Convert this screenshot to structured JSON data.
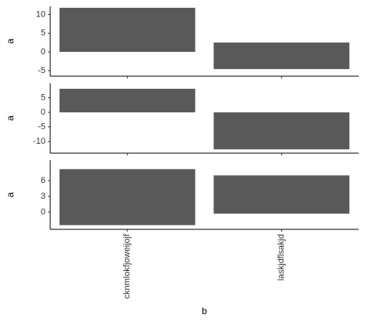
{
  "chart_data": [
    {
      "type": "bar",
      "y_label": "a",
      "ymin": [
        0,
        -4.6
      ],
      "ymax": [
        11.8,
        2.5
      ],
      "color": "#595959",
      "ylim": [
        -6.5,
        12.2
      ],
      "yticks": [
        -5,
        0,
        5,
        10
      ]
    },
    {
      "type": "bar",
      "y_label": "a",
      "ymin": [
        0,
        -12.7
      ],
      "ymax": [
        8.1,
        0
      ],
      "color": "#595959",
      "ylim": [
        -14,
        10
      ],
      "yticks": [
        -10,
        -5,
        0,
        5
      ]
    },
    {
      "type": "bar",
      "y_label": "a",
      "x_label": "b",
      "categories": [
        "cknmlokfjoweijojf",
        "laskjdflsakjd"
      ],
      "ymin": [
        -2.5,
        -0.3
      ],
      "ymax": [
        8.2,
        7.0
      ],
      "color": "#595959",
      "ylim": [
        -3.3,
        9.9
      ],
      "yticks": [
        0,
        3,
        6
      ]
    }
  ]
}
